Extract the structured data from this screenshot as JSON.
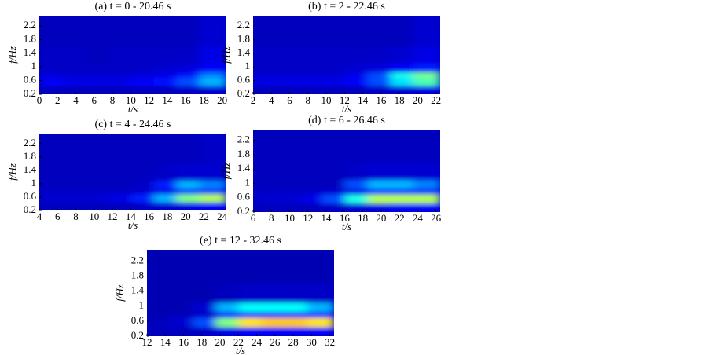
{
  "chart_data": [
    {
      "type": "heatmap",
      "title": "(a) t = 0 - 20.46 s",
      "xlabel": "t/s",
      "ylabel": "f/Hz",
      "xlim": [
        0,
        20.46
      ],
      "ylim": [
        0.2,
        2.5
      ],
      "xticks": [
        0,
        2,
        4,
        6,
        8,
        10,
        12,
        14,
        16,
        18,
        20
      ],
      "yticks": [
        0.2,
        0.6,
        1,
        1.4,
        1.8,
        2.2
      ],
      "xbins": [
        0,
        2.5,
        5,
        7.5,
        10,
        12.5,
        15,
        17.5,
        20.46
      ],
      "ybins": [
        0.2,
        0.45,
        0.7,
        0.85,
        1.1,
        1.6,
        2.5
      ],
      "zlim": [
        0,
        1
      ],
      "z": [
        [
          0.06,
          0.06,
          0.06,
          0.06,
          0.06,
          0.06,
          0.07,
          0.08
        ],
        [
          0.12,
          0.1,
          0.1,
          0.1,
          0.12,
          0.14,
          0.2,
          0.3
        ],
        [
          0.09,
          0.08,
          0.08,
          0.08,
          0.09,
          0.1,
          0.14,
          0.25
        ],
        [
          0.07,
          0.07,
          0.07,
          0.07,
          0.07,
          0.08,
          0.09,
          0.12
        ],
        [
          0.07,
          0.07,
          0.06,
          0.07,
          0.07,
          0.07,
          0.07,
          0.1
        ],
        [
          0.06,
          0.06,
          0.06,
          0.06,
          0.06,
          0.06,
          0.06,
          0.08
        ]
      ]
    },
    {
      "type": "heatmap",
      "title": "(b) t = 2 - 22.46 s",
      "xlabel": "t/s",
      "ylabel": "f/Hz",
      "xlim": [
        2,
        22.46
      ],
      "ylim": [
        0.2,
        2.5
      ],
      "xticks": [
        2,
        4,
        6,
        8,
        10,
        12,
        14,
        16,
        18,
        20,
        22
      ],
      "yticks": [
        0.2,
        0.6,
        1,
        1.4,
        1.8,
        2.2
      ],
      "xbins": [
        2,
        4.5,
        7,
        9.5,
        12,
        14.5,
        17,
        19.5,
        22.46
      ],
      "ybins": [
        0.2,
        0.45,
        0.7,
        0.85,
        1.1,
        1.6,
        2.5
      ],
      "zlim": [
        0,
        1
      ],
      "z": [
        [
          0.06,
          0.06,
          0.06,
          0.06,
          0.06,
          0.07,
          0.08,
          0.1
        ],
        [
          0.1,
          0.1,
          0.1,
          0.1,
          0.12,
          0.2,
          0.35,
          0.45
        ],
        [
          0.08,
          0.08,
          0.08,
          0.08,
          0.1,
          0.2,
          0.4,
          0.5
        ],
        [
          0.07,
          0.07,
          0.07,
          0.07,
          0.08,
          0.09,
          0.12,
          0.15
        ],
        [
          0.07,
          0.07,
          0.07,
          0.07,
          0.07,
          0.07,
          0.08,
          0.1
        ],
        [
          0.06,
          0.06,
          0.06,
          0.06,
          0.06,
          0.06,
          0.06,
          0.08
        ]
      ]
    },
    {
      "type": "heatmap",
      "title": "(c) t = 4 - 24.46 s",
      "xlabel": "t/s",
      "ylabel": "f/Hz",
      "xlim": [
        4,
        24.46
      ],
      "ylim": [
        0.2,
        2.5
      ],
      "xticks": [
        4,
        6,
        8,
        10,
        12,
        14,
        16,
        18,
        20,
        22,
        24
      ],
      "yticks": [
        0.2,
        0.6,
        1,
        1.4,
        1.8,
        2.2
      ],
      "xbins": [
        4,
        6.5,
        9,
        11.5,
        14,
        16.5,
        19,
        21.5,
        24.46
      ],
      "ybins": [
        0.2,
        0.45,
        0.7,
        0.85,
        1.1,
        1.6,
        2.5
      ],
      "zlim": [
        0,
        1
      ],
      "z": [
        [
          0.06,
          0.06,
          0.06,
          0.06,
          0.07,
          0.08,
          0.1,
          0.12
        ],
        [
          0.08,
          0.08,
          0.08,
          0.1,
          0.15,
          0.3,
          0.5,
          0.55
        ],
        [
          0.07,
          0.07,
          0.07,
          0.07,
          0.08,
          0.1,
          0.15,
          0.15
        ],
        [
          0.06,
          0.06,
          0.06,
          0.06,
          0.07,
          0.15,
          0.3,
          0.25
        ],
        [
          0.06,
          0.06,
          0.06,
          0.06,
          0.06,
          0.07,
          0.08,
          0.08
        ],
        [
          0.06,
          0.06,
          0.06,
          0.06,
          0.06,
          0.06,
          0.06,
          0.07
        ]
      ]
    },
    {
      "type": "heatmap",
      "title": "(d) t = 6 - 26.46 s",
      "xlabel": "t/s",
      "ylabel": "f/Hz",
      "xlim": [
        6,
        26.46
      ],
      "ylim": [
        0.2,
        2.5
      ],
      "xticks": [
        6,
        8,
        10,
        12,
        14,
        16,
        18,
        20,
        22,
        24,
        26
      ],
      "yticks": [
        0.2,
        0.6,
        1,
        1.4,
        1.8,
        2.2
      ],
      "xbins": [
        6,
        8.5,
        11,
        13.5,
        16,
        18.5,
        21,
        23.5,
        26.46
      ],
      "ybins": [
        0.2,
        0.45,
        0.7,
        0.85,
        1.1,
        1.6,
        2.5
      ],
      "zlim": [
        0,
        1
      ],
      "z": [
        [
          0.06,
          0.06,
          0.06,
          0.07,
          0.08,
          0.1,
          0.12,
          0.12
        ],
        [
          0.08,
          0.08,
          0.1,
          0.2,
          0.4,
          0.55,
          0.55,
          0.55
        ],
        [
          0.07,
          0.07,
          0.07,
          0.08,
          0.1,
          0.15,
          0.15,
          0.15
        ],
        [
          0.06,
          0.06,
          0.06,
          0.06,
          0.2,
          0.3,
          0.3,
          0.25
        ],
        [
          0.06,
          0.06,
          0.06,
          0.06,
          0.07,
          0.08,
          0.08,
          0.08
        ],
        [
          0.06,
          0.06,
          0.06,
          0.06,
          0.06,
          0.06,
          0.06,
          0.06
        ]
      ]
    },
    {
      "type": "heatmap",
      "title": "(e) t = 12 - 32.46 s",
      "xlabel": "t/s",
      "ylabel": "f/Hz",
      "xlim": [
        12,
        32.46
      ],
      "ylim": [
        0.2,
        2.5
      ],
      "xticks": [
        12,
        14,
        16,
        18,
        20,
        22,
        24,
        26,
        28,
        30,
        32
      ],
      "yticks": [
        0.2,
        0.6,
        1,
        1.4,
        1.8,
        2.2
      ],
      "xbins": [
        12,
        14.5,
        17,
        19.5,
        22,
        24.5,
        27,
        29.5,
        32.46
      ],
      "ybins": [
        0.2,
        0.45,
        0.7,
        0.85,
        1.1,
        1.6,
        2.5
      ],
      "zlim": [
        0,
        1
      ],
      "z": [
        [
          0.06,
          0.06,
          0.07,
          0.1,
          0.12,
          0.12,
          0.12,
          0.12
        ],
        [
          0.06,
          0.08,
          0.2,
          0.5,
          0.65,
          0.68,
          0.68,
          0.65
        ],
        [
          0.05,
          0.06,
          0.07,
          0.12,
          0.15,
          0.15,
          0.15,
          0.14
        ],
        [
          0.05,
          0.05,
          0.08,
          0.3,
          0.38,
          0.38,
          0.38,
          0.3
        ],
        [
          0.05,
          0.05,
          0.05,
          0.06,
          0.07,
          0.07,
          0.07,
          0.07
        ],
        [
          0.05,
          0.05,
          0.05,
          0.05,
          0.05,
          0.05,
          0.05,
          0.05
        ]
      ]
    }
  ]
}
